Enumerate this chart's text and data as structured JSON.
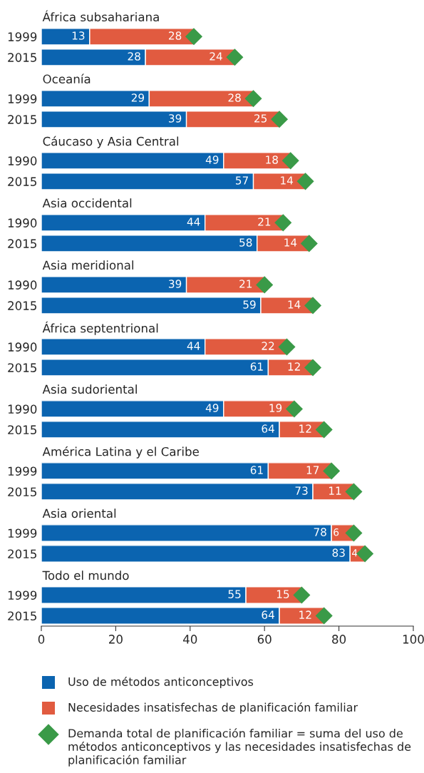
{
  "chart_data": {
    "type": "bar",
    "orientation": "horizontal",
    "stacked": true,
    "categories": [
      null,
      "1999",
      "2015",
      null,
      "1999",
      "2015",
      null,
      "1990",
      "2015",
      null,
      "1990",
      "2015",
      null,
      "1990",
      "2015",
      null,
      "1990",
      "2015",
      null,
      "1990",
      "2015",
      null,
      "1999",
      "2015",
      null,
      "1999",
      "2015",
      null,
      "1999",
      "2015"
    ],
    "annotations": [
      "África subsahariana",
      "Oceanía",
      "Cáucaso y Asia Central",
      "Asia occidental",
      "Asia meridional",
      "África septentrional",
      "Asia sudoriental",
      "América Latina y el Caribe",
      "Asia oriental",
      "Todo el mundo"
    ],
    "series": [
      {
        "name": "Uso de métodos anticonceptivos",
        "color": "#0b64b0",
        "values": [
          null,
          13,
          28,
          null,
          29,
          39,
          null,
          49,
          57,
          null,
          44,
          58,
          null,
          39,
          59,
          null,
          44,
          61,
          null,
          49,
          64,
          null,
          61,
          73,
          null,
          78,
          83,
          null,
          55,
          64
        ],
        "value_labels": [
          null,
          "13",
          "28",
          null,
          "29",
          "39",
          null,
          "49",
          "57",
          null,
          "44",
          "58",
          null,
          "39",
          "59",
          null,
          "44",
          "61",
          null,
          "49",
          "64",
          null,
          "61",
          "73",
          null,
          "78",
          "83",
          null,
          "55",
          "64"
        ]
      },
      {
        "name": "Necesidades insatisfechas de planificación familiar",
        "color": "#e15b40",
        "values": [
          null,
          28,
          24,
          null,
          28,
          25,
          null,
          18,
          14,
          null,
          21,
          14,
          null,
          21,
          14,
          null,
          22,
          12,
          null,
          19,
          12,
          null,
          17,
          11,
          null,
          6,
          4,
          null,
          15,
          12
        ],
        "value_labels": [
          null,
          "28",
          "24",
          null,
          "28",
          "25",
          null,
          "18",
          "14",
          null,
          "21",
          "14",
          null,
          "21",
          "14",
          null,
          "22",
          "12",
          null,
          "19",
          "12",
          null,
          "17",
          "11",
          null,
          "6",
          "4",
          null,
          "15",
          "12"
        ]
      },
      {
        "name": "Demanda total de planificación familiar = suma del uso de métodos anticonceptivos y las necesidades insatisfechas de planificación familiar",
        "type": "scatter",
        "marker": "diamond",
        "color": "#3a9a48",
        "values": [
          null,
          41,
          52,
          null,
          57,
          64,
          null,
          67,
          71,
          null,
          65,
          72,
          null,
          60,
          73,
          null,
          66,
          73,
          null,
          68,
          76,
          null,
          78,
          84,
          null,
          84,
          87,
          null,
          70,
          76
        ]
      }
    ],
    "xlim": [
      0,
      100
    ],
    "xticks": [
      0,
      20,
      40,
      60,
      80,
      100
    ],
    "grid": false,
    "legend": "bottom"
  }
}
